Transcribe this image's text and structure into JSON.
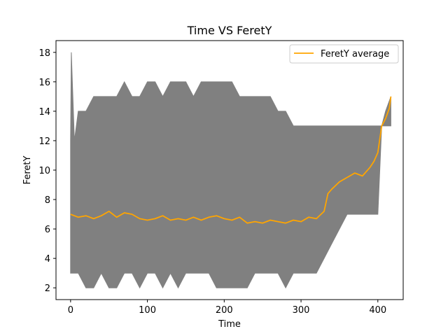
{
  "chart_data": {
    "type": "line",
    "title": "Time VS FeretY",
    "xlabel": "Time",
    "ylabel": "FeretY",
    "xlim": [
      -19,
      433
    ],
    "ylim": [
      1.2,
      18.8
    ],
    "xticks": [
      0,
      100,
      200,
      300,
      400
    ],
    "yticks": [
      2,
      4,
      6,
      8,
      10,
      12,
      14,
      16,
      18
    ],
    "grid": false,
    "legend": {
      "placement": "top-right",
      "entries": [
        "FeretY average"
      ]
    },
    "colors": {
      "range_fill": "#808080",
      "average": "#ffa500",
      "axes": "#000000"
    },
    "series": [
      {
        "name": "FeretY average",
        "kind": "line",
        "x": [
          0,
          10,
          20,
          30,
          40,
          50,
          60,
          70,
          80,
          90,
          100,
          110,
          120,
          130,
          140,
          150,
          160,
          170,
          180,
          190,
          200,
          210,
          220,
          230,
          240,
          250,
          260,
          270,
          280,
          290,
          300,
          310,
          320,
          330,
          335,
          340,
          350,
          360,
          370,
          380,
          390,
          395,
          400,
          405,
          410,
          415,
          417
        ],
        "y": [
          7.0,
          6.8,
          6.9,
          6.7,
          6.9,
          7.2,
          6.8,
          7.1,
          7.0,
          6.7,
          6.6,
          6.7,
          6.9,
          6.6,
          6.7,
          6.6,
          6.8,
          6.6,
          6.8,
          6.9,
          6.7,
          6.6,
          6.8,
          6.4,
          6.5,
          6.4,
          6.6,
          6.5,
          6.4,
          6.6,
          6.5,
          6.8,
          6.7,
          7.2,
          8.4,
          8.7,
          9.2,
          9.5,
          9.8,
          9.6,
          10.2,
          10.6,
          11.2,
          13.0,
          13.5,
          14.2,
          15.0
        ]
      },
      {
        "kind": "range",
        "x": [
          0,
          1,
          5,
          10,
          20,
          30,
          40,
          50,
          60,
          70,
          80,
          90,
          100,
          110,
          120,
          130,
          140,
          150,
          160,
          170,
          180,
          190,
          200,
          210,
          220,
          230,
          240,
          250,
          260,
          270,
          280,
          290,
          300,
          310,
          320,
          330,
          340,
          350,
          360,
          370,
          380,
          390,
          400,
          405,
          410,
          417
        ],
        "min": [
          3,
          3,
          3,
          3,
          2,
          2,
          3,
          2,
          2,
          3,
          3,
          2,
          3,
          3,
          2,
          3,
          2,
          3,
          3,
          3,
          3,
          2,
          2,
          2,
          2,
          2,
          3,
          3,
          3,
          3,
          2,
          3,
          3,
          3,
          3,
          4,
          5,
          6,
          7,
          7,
          7,
          7,
          7,
          13,
          13,
          13
        ],
        "max": [
          12,
          18,
          12,
          14,
          14,
          15,
          15,
          15,
          15,
          16,
          15,
          15,
          16,
          16,
          15,
          16,
          16,
          16,
          15,
          16,
          16,
          16,
          16,
          16,
          15,
          15,
          15,
          15,
          15,
          14,
          14,
          13,
          13,
          13,
          13,
          13,
          13,
          13,
          13,
          13,
          13,
          13,
          13,
          13,
          14,
          15
        ]
      }
    ]
  }
}
